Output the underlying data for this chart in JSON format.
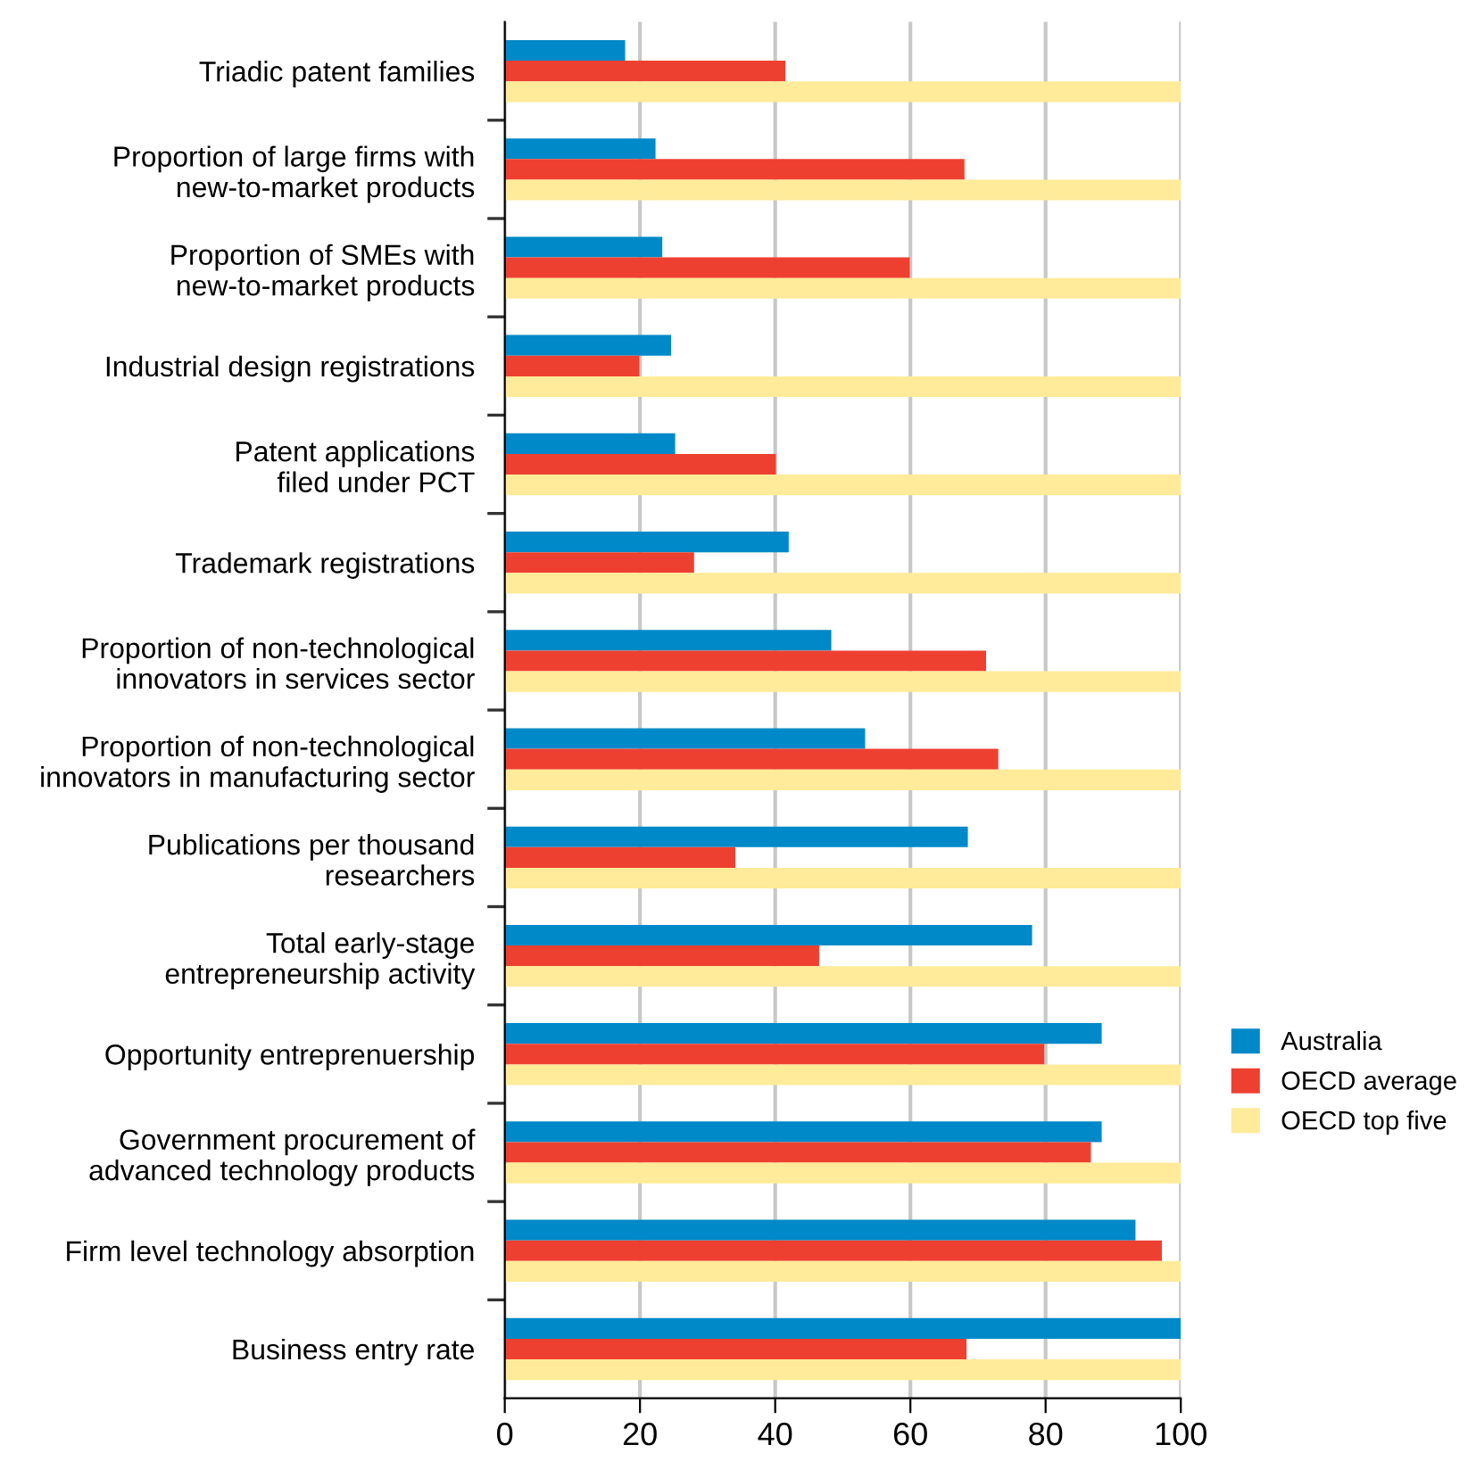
{
  "chart_data": {
    "type": "bar",
    "orientation": "horizontal",
    "categories": [
      "Triadic patent families",
      "Proportion of large firms with\nnew-to-market products",
      "Proportion of SMEs with\nnew-to-market products",
      "Industrial design registrations",
      "Patent applications\nfiled under PCT",
      "Trademark registrations",
      "Proportion of non-technological\ninnovators in services sector",
      "Proportion of non-technological\ninnovators in manufacturing sector",
      "Publications per thousand\nresearchers",
      "Total early-stage\nentrepreneurship activity",
      "Opportunity entreprenuership",
      "Government procurement of\nadvanced technology products",
      "Firm level technology absorption",
      "Business entry rate"
    ],
    "series": [
      {
        "name": "Australia",
        "color": "#0089c8",
        "values": [
          17.8,
          22.3,
          23.3,
          24.6,
          25.2,
          42.0,
          48.3,
          53.3,
          68.5,
          78.0,
          88.3,
          88.3,
          93.3,
          100
        ]
      },
      {
        "name": "OECD average",
        "color": "#ee4030",
        "values": [
          41.5,
          68.0,
          59.9,
          19.9,
          40.1,
          28.0,
          71.2,
          73.0,
          34.1,
          46.5,
          79.8,
          86.7,
          97.2,
          68.3
        ]
      },
      {
        "name": "OECD top five",
        "color": "#ffeb99",
        "values": [
          100,
          100,
          100,
          100,
          100,
          100,
          100,
          100,
          100,
          100,
          100,
          100,
          100,
          100
        ]
      }
    ],
    "xlim": [
      0,
      100
    ],
    "xticks": [
      0,
      20,
      40,
      60,
      80,
      100
    ],
    "grid": "x",
    "legend": "right"
  }
}
